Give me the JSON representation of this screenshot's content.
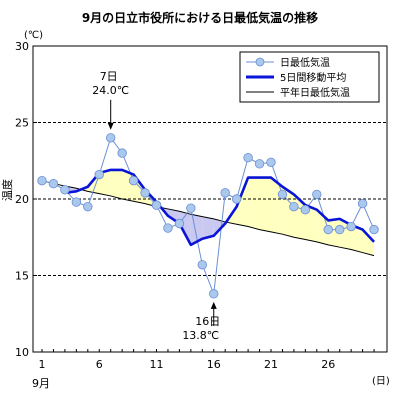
{
  "chart_data": {
    "type": "line",
    "title": "9月の日立市役所における日最低気温の推移",
    "ylabel": "温度",
    "y_unit": "(℃)",
    "x_unit": "(日)",
    "x_month_label": "9月",
    "ylim": [
      10,
      30
    ],
    "xlim": [
      1,
      30
    ],
    "y_ticks": [
      "10",
      "15",
      "20",
      "25",
      "30"
    ],
    "x_ticks": [
      "1",
      "6",
      "11",
      "16",
      "21",
      "26"
    ],
    "grid": "horizontal dashed at 15, 20, 25",
    "legend_position": "top-right",
    "x": [
      1,
      2,
      3,
      4,
      5,
      6,
      7,
      8,
      9,
      10,
      11,
      12,
      13,
      14,
      15,
      16,
      17,
      18,
      19,
      20,
      21,
      22,
      23,
      24,
      25,
      26,
      27,
      28,
      29,
      30
    ],
    "series": [
      {
        "name": "日最低気温",
        "color": "#6b8fd6",
        "marker_color": "#a9c8ec",
        "values": [
          21.2,
          21.0,
          20.6,
          19.8,
          19.5,
          21.6,
          24.0,
          23.0,
          21.2,
          20.4,
          19.6,
          18.1,
          18.4,
          19.4,
          15.7,
          13.8,
          20.4,
          20.0,
          22.7,
          22.3,
          22.4,
          20.3,
          19.5,
          19.3,
          20.3,
          18.0,
          18.0,
          18.2,
          19.7,
          18.0
        ]
      },
      {
        "name": "5日間移動平均",
        "color": "#0a14d8",
        "values": [
          null,
          null,
          20.4,
          20.5,
          20.8,
          21.7,
          21.9,
          21.9,
          21.6,
          20.6,
          19.8,
          18.9,
          18.4,
          17.0,
          17.4,
          17.6,
          18.4,
          19.5,
          21.4,
          21.4,
          21.4,
          20.8,
          20.3,
          19.6,
          19.3,
          18.6,
          18.7,
          18.3,
          18.0,
          17.2
        ]
      },
      {
        "name": "平年日最低気温",
        "color": "#000000",
        "values": [
          21.2,
          21.0,
          20.85,
          20.7,
          20.5,
          20.35,
          20.2,
          20.0,
          19.85,
          19.7,
          19.5,
          19.35,
          19.2,
          19.0,
          18.85,
          18.7,
          18.5,
          18.35,
          18.2,
          18.0,
          17.85,
          17.7,
          17.5,
          17.35,
          17.2,
          17.0,
          16.85,
          16.7,
          16.5,
          16.3
        ]
      }
    ],
    "fill_above_normal_color": "#ffffc0",
    "fill_below_normal_color": "#c8c8f0",
    "annotations": [
      {
        "day": 7,
        "value": 24.0,
        "line1": "7日",
        "line2": "24.0℃"
      },
      {
        "day": 16,
        "value": 13.8,
        "line1": "16日",
        "line2": "13.8℃"
      }
    ]
  }
}
